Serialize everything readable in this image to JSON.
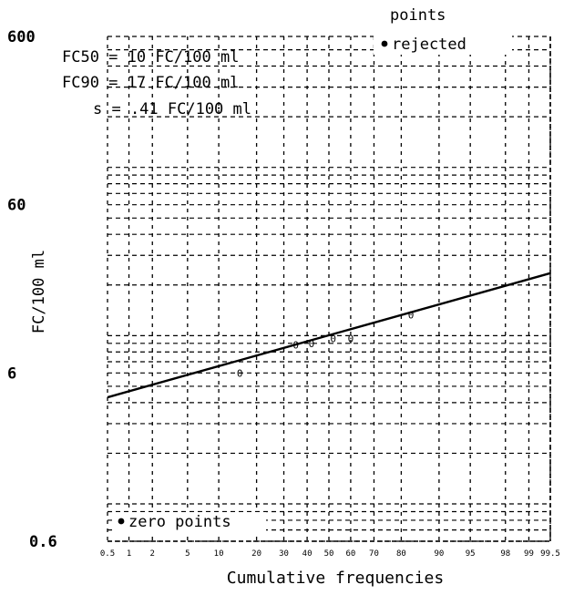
{
  "chart_data": {
    "type": "line",
    "title": "",
    "xlabel": "Cumulative frequencies",
    "ylabel": "FC/100 ml",
    "x_scale": "normal-probability",
    "y_scale": "log",
    "xlim": [
      0.5,
      99.5
    ],
    "ylim": [
      0.6,
      600
    ],
    "x_ticks": [
      0.5,
      1,
      2,
      5,
      10,
      20,
      30,
      40,
      50,
      60,
      70,
      80,
      90,
      95,
      98,
      99,
      99.5
    ],
    "x_tick_labels": [
      "0.5",
      "1",
      "2",
      "5",
      "10",
      "20",
      "30",
      "40",
      "50",
      "60",
      "70",
      "80",
      "90",
      "95",
      "98",
      "99",
      "99.5"
    ],
    "y_ticks": [
      0.6,
      6,
      60,
      600
    ],
    "y_tick_labels": [
      "0.6",
      "6",
      "60",
      "600"
    ],
    "grid": true,
    "series": [
      {
        "type": "line",
        "x": [
          0.5,
          99.5
        ],
        "y": [
          4.3,
          23.5
        ]
      },
      {
        "type": "scatter",
        "marker": "0",
        "x": [
          15,
          35,
          42,
          52,
          60,
          83
        ],
        "y": [
          6.0,
          8.8,
          9.0,
          9.6,
          9.6,
          13.3
        ]
      }
    ],
    "annotations": {
      "stats": [
        "FC50 = 10 FC/100 ml",
        "FC90 = 17 FC/100 ml",
        "s = .41 FC/100 ml"
      ],
      "points_label": "points",
      "rejected_label": "rejected",
      "zero_points_label": "zero points"
    }
  }
}
